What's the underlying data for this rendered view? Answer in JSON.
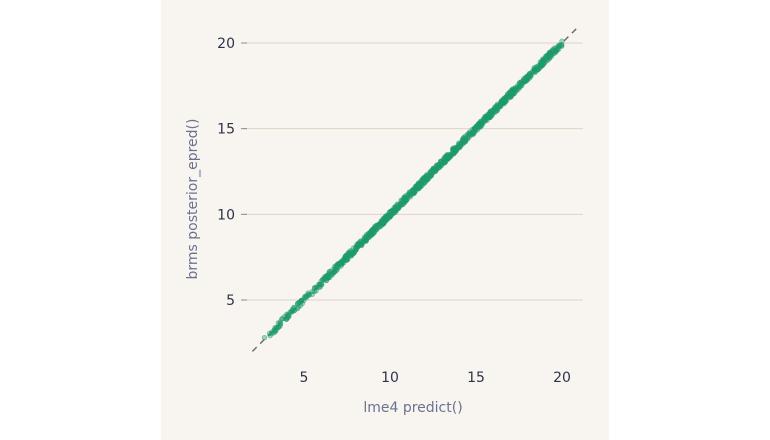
{
  "chart_data": {
    "type": "scatter",
    "xlabel": "lme4 predict()",
    "ylabel": "brms posterior_epred()",
    "xlim": [
      1.5,
      21.2
    ],
    "ylim": [
      1.5,
      22.5
    ],
    "x_ticks": [
      "5",
      "10",
      "15",
      "20"
    ],
    "y_ticks": [
      "5",
      "10",
      "15",
      "20"
    ],
    "grid": "horizontal",
    "reference_line": "y = x",
    "point_color": "#1f9a6c",
    "series": [
      {
        "points_x": [
          2.7,
          3.5,
          4.2,
          4.9,
          5.3,
          5.6,
          6.0,
          6.4,
          6.8,
          7.2,
          7.6,
          8.0,
          8.3,
          8.6,
          8.9,
          9.2,
          9.5,
          9.8,
          10.1,
          10.4,
          10.7,
          11.0,
          11.3,
          11.6,
          11.9,
          12.2,
          12.5,
          12.8,
          13.1,
          13.4,
          13.7,
          14.0,
          14.3,
          14.6,
          14.9,
          15.2,
          15.5,
          15.8,
          16.1,
          16.4,
          16.7,
          17.0,
          17.3,
          17.6,
          17.9,
          18.2,
          18.5,
          18.8,
          19.2,
          19.6,
          20.0
        ],
        "points_y": [
          2.8,
          3.4,
          4.3,
          4.8,
          5.3,
          5.5,
          6.1,
          6.3,
          6.9,
          7.1,
          7.7,
          7.9,
          8.4,
          8.5,
          9.0,
          9.1,
          9.6,
          9.7,
          10.2,
          10.3,
          10.8,
          10.9,
          11.4,
          11.5,
          12.0,
          12.1,
          12.6,
          12.7,
          13.2,
          13.3,
          13.8,
          13.9,
          14.5,
          14.5,
          15.0,
          15.1,
          15.6,
          15.7,
          16.2,
          16.3,
          16.8,
          16.9,
          17.4,
          17.5,
          18.0,
          18.1,
          18.6,
          18.7,
          19.3,
          19.5,
          20.1
        ]
      }
    ]
  }
}
